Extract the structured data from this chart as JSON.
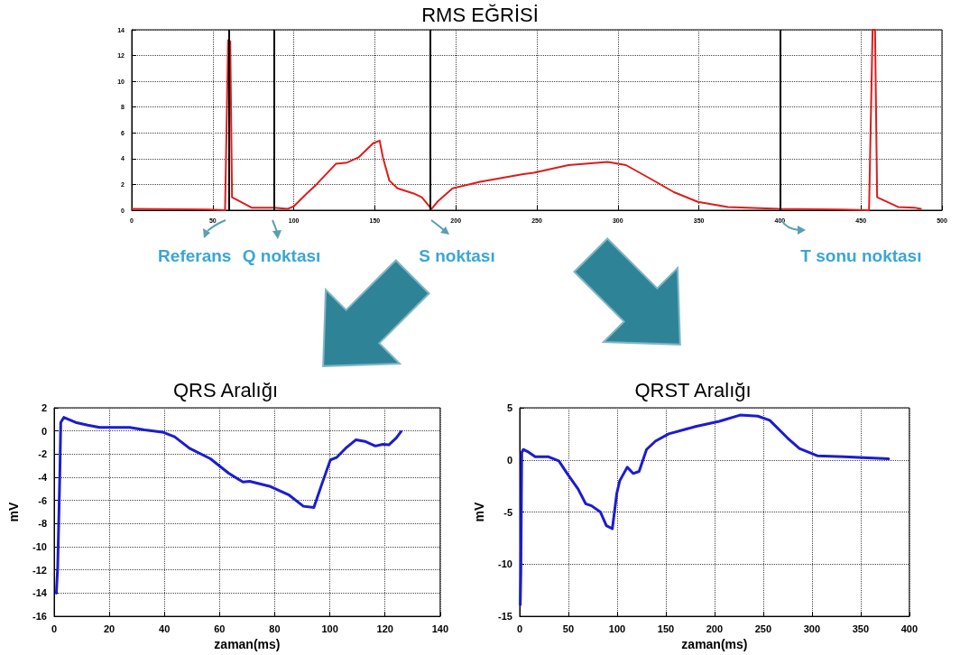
{
  "chart_data": [
    {
      "type": "line",
      "title": "RMS EĞRİSİ",
      "color": "#dd1c1c",
      "marker": "none",
      "grid": true,
      "x": [
        0,
        47,
        57.6,
        59.5,
        60.8,
        61.9,
        74,
        88,
        96,
        100,
        108,
        114,
        126,
        133,
        140,
        149,
        153,
        155,
        159,
        164,
        174,
        179,
        185,
        189,
        198,
        215,
        241.6,
        248,
        269.5,
        293.7,
        305,
        320,
        334.6,
        349.4,
        368,
        399.6,
        436.8,
        455,
        457.2,
        458.7,
        460,
        473,
        483,
        487
      ],
      "values": [
        0.1,
        0.05,
        0,
        13.2,
        13.1,
        1.0,
        0.2,
        0.2,
        0.1,
        0.3,
        1.3,
        2.0,
        3.6,
        3.7,
        4.1,
        5.2,
        5.4,
        4.1,
        2.3,
        1.7,
        1.3,
        1.0,
        0.1,
        0.7,
        1.7,
        2.2,
        2.8,
        2.9,
        3.5,
        3.75,
        3.5,
        2.45,
        1.4,
        0.65,
        0.25,
        0.1,
        0.05,
        0,
        14,
        14,
        1.0,
        0.25,
        0.2,
        0.1
      ],
      "xlim": [
        0,
        500
      ],
      "xticks": [
        0,
        50,
        100,
        150,
        200,
        250,
        300,
        350,
        400,
        450,
        500
      ],
      "ylim": [
        0,
        14
      ],
      "yticks": [
        0,
        2,
        4,
        6,
        8,
        10,
        12,
        14
      ],
      "ref_lines": [
        {
          "axis": "x",
          "value": 60,
          "label": "Referans",
          "color": "#000000"
        },
        {
          "axis": "x",
          "value": 88,
          "label": "Q noktası",
          "color": "#000000"
        },
        {
          "axis": "x",
          "value": 184,
          "label": "S noktası",
          "color": "#000000"
        },
        {
          "axis": "x",
          "value": 400,
          "label": "T sonu noktası",
          "color": "#000000"
        }
      ]
    },
    {
      "type": "line",
      "title": "QRS Aralığı",
      "xlabel": "zaman(ms)",
      "ylabel": "mV",
      "color": "#1c1cd0",
      "marker": "none",
      "grid": true,
      "x": [
        0.8,
        1.3,
        2.1,
        2.4,
        3.5,
        7.8,
        12.2,
        16.5,
        27.4,
        32.8,
        39.3,
        43.7,
        49.1,
        56.7,
        63.3,
        68.5,
        70.9,
        78.5,
        85,
        90.4,
        94.2,
        97,
        100.2,
        102.4,
        105.7,
        109.5,
        112.7,
        116.5,
        119.2,
        121.4,
        124.1,
        125.8
      ],
      "values": [
        -14,
        -11.7,
        -3.4,
        0.74,
        1.17,
        0.74,
        0.5,
        0.3,
        0.3,
        0.1,
        -0.1,
        -0.5,
        -1.5,
        -2.4,
        -3.65,
        -4.4,
        -4.35,
        -4.8,
        -5.5,
        -6.5,
        -6.6,
        -4.65,
        -2.5,
        -2.3,
        -1.5,
        -0.76,
        -0.9,
        -1.3,
        -1.15,
        -1.2,
        -0.6,
        -0.05
      ],
      "xlim": [
        0,
        140
      ],
      "xticks": [
        0,
        20,
        40,
        60,
        80,
        100,
        120,
        140
      ],
      "ylim": [
        -16,
        2
      ],
      "yticks": [
        -16,
        -14,
        -12,
        -10,
        -8,
        -6,
        -4,
        -2,
        0,
        2
      ]
    },
    {
      "type": "line",
      "title": "QRST Aralığı",
      "xlabel": "zaman(ms)",
      "ylabel": "mV",
      "color": "#1c1cd0",
      "marker": "none",
      "grid": true,
      "x": [
        0.6,
        1.2,
        2.1,
        3.7,
        8.2,
        15.9,
        29.6,
        40.2,
        49.4,
        60,
        67.7,
        73.8,
        82.9,
        89,
        95.1,
        99.7,
        102.7,
        110.4,
        116.5,
        122.6,
        130.2,
        139.3,
        153,
        180.5,
        204.9,
        226.2,
        244.5,
        256.7,
        275,
        287.2,
        305.5,
        332.9,
        378.7
      ],
      "values": [
        -13.9,
        -10.8,
        0.7,
        1.0,
        0.8,
        0.3,
        0.3,
        -0.1,
        -1.4,
        -2.8,
        -4.2,
        -4.4,
        -5.0,
        -6.3,
        -6.6,
        -3.2,
        -2.0,
        -0.7,
        -1.3,
        -1.1,
        1.0,
        1.8,
        2.5,
        3.2,
        3.7,
        4.3,
        4.2,
        3.8,
        2.1,
        1.1,
        0.4,
        0.3,
        0.1
      ],
      "xlim": [
        0,
        400
      ],
      "xticks": [
        0,
        50,
        100,
        150,
        200,
        250,
        300,
        350,
        400
      ],
      "ylim": [
        -15,
        5
      ],
      "yticks": [
        -15,
        -10,
        -5,
        0,
        5
      ]
    }
  ]
}
